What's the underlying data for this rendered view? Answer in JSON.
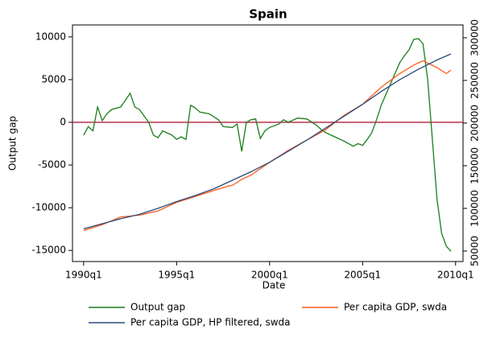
{
  "chart_data": {
    "type": "line",
    "title": "Spain",
    "x_label": "Date",
    "y_label": "Output gap",
    "xlim": [
      1989.4,
      2010.4
    ],
    "xticks": [
      {
        "value": 1990,
        "label": "1990q1"
      },
      {
        "value": 1995,
        "label": "1995q1"
      },
      {
        "value": 2000,
        "label": "2000q1"
      },
      {
        "value": 2005,
        "label": "2005q1"
      },
      {
        "value": 2010,
        "label": "2010q1"
      }
    ],
    "ylim": [
      -16300,
      11400
    ],
    "yticks": [
      -15000,
      -10000,
      -5000,
      0,
      5000,
      10000
    ],
    "y2lim": [
      37700,
      315000
    ],
    "y2ticks": [
      50000,
      100000,
      150000,
      200000,
      250000,
      300000
    ],
    "reference_line": {
      "value": 0,
      "color": "#b8324f"
    },
    "series": [
      {
        "name": "Output gap",
        "color": "#1a7d1a",
        "x": [
          1990,
          1990.25,
          1990.5,
          1990.75,
          1991,
          1991.25,
          1991.5,
          1992,
          1992.5,
          1992.75,
          1993,
          1993.5,
          1993.75,
          1994,
          1994.25,
          1994.75,
          1995,
          1995.25,
          1995.5,
          1995.75,
          1996,
          1996.25,
          1996.75,
          1997.25,
          1997.5,
          1998,
          1998.25,
          1998.5,
          1998.75,
          1999,
          1999.25,
          1999.5,
          1999.75,
          2000,
          2000.5,
          2000.75,
          2001,
          2001.5,
          2002,
          2002.5,
          2002.75,
          2003,
          2003.5,
          2004,
          2004.5,
          2004.75,
          2005,
          2005.25,
          2005.5,
          2005.75,
          2006,
          2006.5,
          2007,
          2007.25,
          2007.5,
          2007.75,
          2008,
          2008.25,
          2008.5,
          2008.75,
          2009,
          2009.25,
          2009.5,
          2009.75
        ],
        "values": [
          -1500,
          -500,
          -1000,
          1800,
          200,
          1000,
          1500,
          1800,
          3400,
          1800,
          1500,
          0,
          -1500,
          -1800,
          -1000,
          -1500,
          -2000,
          -1700,
          -2000,
          2000,
          1700,
          1200,
          1000,
          300,
          -500,
          -600,
          -200,
          -3400,
          0,
          300,
          400,
          -1900,
          -1000,
          -600,
          -200,
          300,
          0,
          500,
          400,
          -300,
          -800,
          -1200,
          -1700,
          -2200,
          -2800,
          -2500,
          -2700,
          -2000,
          -1200,
          300,
          2000,
          4500,
          7000,
          7800,
          8500,
          9700,
          9800,
          9200,
          5000,
          -2000,
          -9000,
          -13000,
          -14500,
          -15100
        ]
      },
      {
        "name": "Per capita GDP, swda",
        "color": "#ff5a1e",
        "axis": "y2",
        "x": [
          1990,
          1991,
          1992,
          1993,
          1994,
          1995,
          1996,
          1997,
          1997.75,
          1998,
          1998.5,
          1999,
          2000,
          2001,
          2002,
          2003,
          2004,
          2005,
          2006,
          2007,
          2007.75,
          2008.25,
          2009,
          2009.5,
          2009.75
        ],
        "values": [
          74000,
          81000,
          90000,
          92000,
          97000,
          107000,
          114000,
          121000,
          126000,
          127000,
          134000,
          139000,
          154000,
          168000,
          180000,
          192000,
          209000,
          222000,
          242000,
          258000,
          268000,
          273000,
          265000,
          258000,
          262000
        ]
      },
      {
        "name": "Per capita GDP, HP filtered, swda",
        "color": "#2a4a7a",
        "axis": "y2",
        "x": [
          1990,
          1991,
          1992,
          1993,
          1994,
          1995,
          1996,
          1997,
          1998,
          1999,
          2000,
          2001,
          2002,
          2003,
          2004,
          2005,
          2006,
          2007,
          2008,
          2009,
          2009.75
        ],
        "values": [
          76000,
          82000,
          88000,
          93000,
          100000,
          108000,
          115000,
          123000,
          133000,
          143000,
          154000,
          167000,
          180000,
          194000,
          208000,
          222000,
          237000,
          251000,
          263000,
          274000,
          281000
        ]
      }
    ]
  }
}
